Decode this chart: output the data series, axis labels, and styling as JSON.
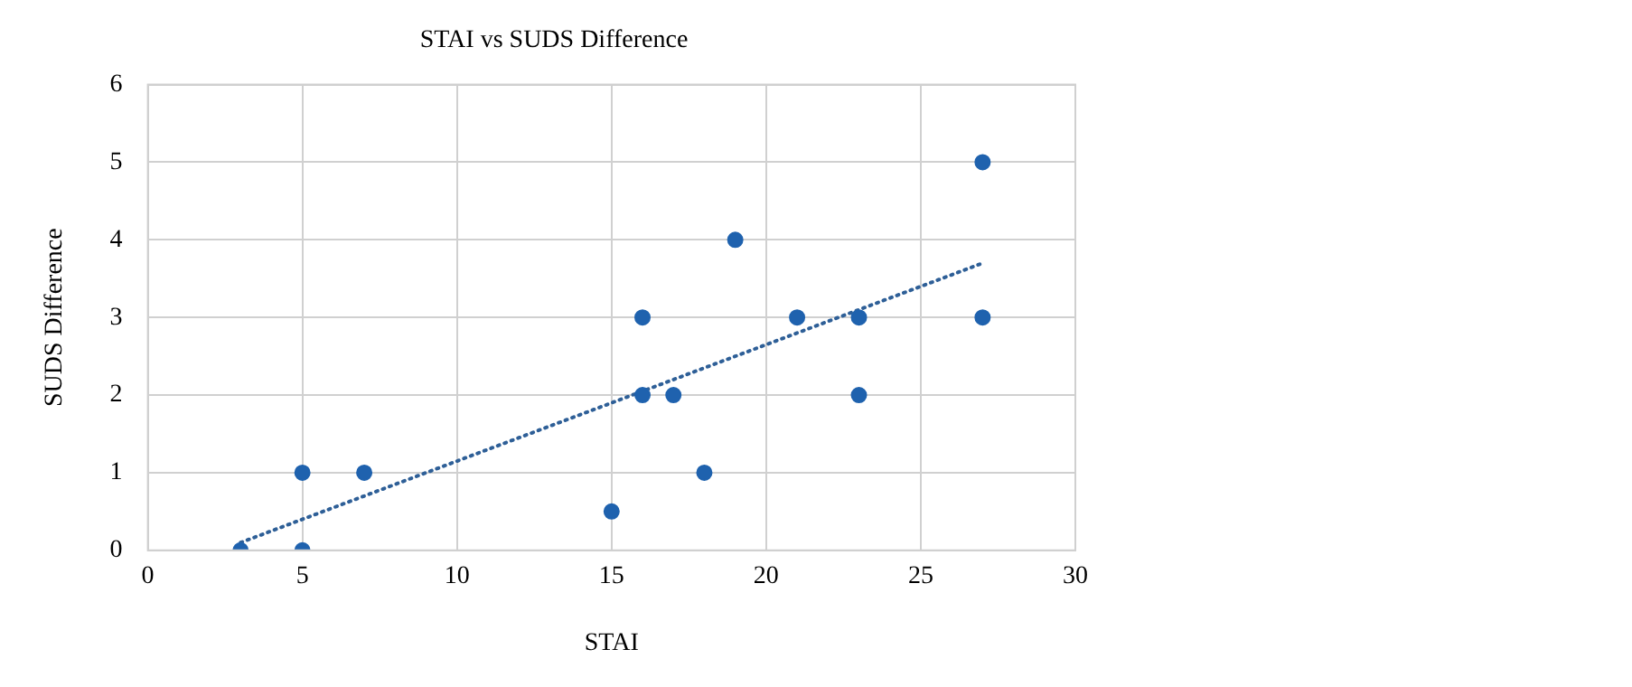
{
  "chart_data": {
    "type": "scatter",
    "title": "STAI vs SUDS Difference",
    "xlabel": "STAI",
    "ylabel": "SUDS Difference",
    "xlim": [
      0,
      30
    ],
    "xticks": [
      0,
      5,
      10,
      15,
      20,
      25,
      30
    ],
    "ylim": [
      0,
      6
    ],
    "yticks": [
      0,
      1,
      2,
      3,
      4,
      5,
      6
    ],
    "grid": true,
    "legend": false,
    "marker": "circle",
    "series": [
      {
        "color": "#1f62ae",
        "x": [
          3,
          5,
          5,
          7,
          15,
          16,
          16,
          17,
          18,
          19,
          21,
          23,
          23,
          27,
          27
        ],
        "values": [
          0,
          0,
          1,
          1,
          0.5,
          3,
          2,
          2,
          1,
          4,
          3,
          3,
          2,
          5,
          3
        ]
      },
      {
        "type": "line",
        "color": "#2e5f97",
        "line_style": "dotted",
        "marker": "none",
        "x": [
          3,
          27
        ],
        "values": [
          0.1,
          3.7
        ]
      }
    ]
  }
}
